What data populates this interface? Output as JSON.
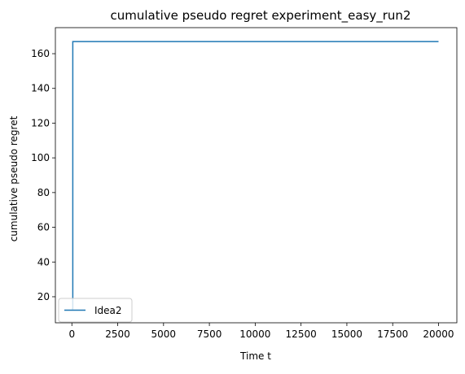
{
  "chart_data": {
    "type": "line",
    "title": "cumulative pseudo regret experiment_easy_run2",
    "xlabel": "Time t",
    "ylabel": "cumulative pseudo regret",
    "xlim": [
      -900,
      21000
    ],
    "ylim": [
      5,
      175
    ],
    "xticks": [
      0,
      2500,
      5000,
      7500,
      10000,
      12500,
      15000,
      17500,
      20000
    ],
    "xtick_labels": [
      "0",
      "2500",
      "5000",
      "7500",
      "10000",
      "12500",
      "15000",
      "17500",
      "20000"
    ],
    "yticks": [
      20,
      40,
      60,
      80,
      100,
      120,
      140,
      160
    ],
    "ytick_labels": [
      "20",
      "40",
      "60",
      "80",
      "100",
      "120",
      "140",
      "160"
    ],
    "grid": false,
    "legend_position": "lower-left",
    "series": [
      {
        "name": "Idea2",
        "color": "#1f77b4",
        "x": [
          1,
          50,
          100,
          1000,
          5000,
          10000,
          15000,
          20000
        ],
        "y": [
          13,
          167,
          167,
          167,
          167,
          167,
          167,
          167
        ]
      }
    ]
  }
}
